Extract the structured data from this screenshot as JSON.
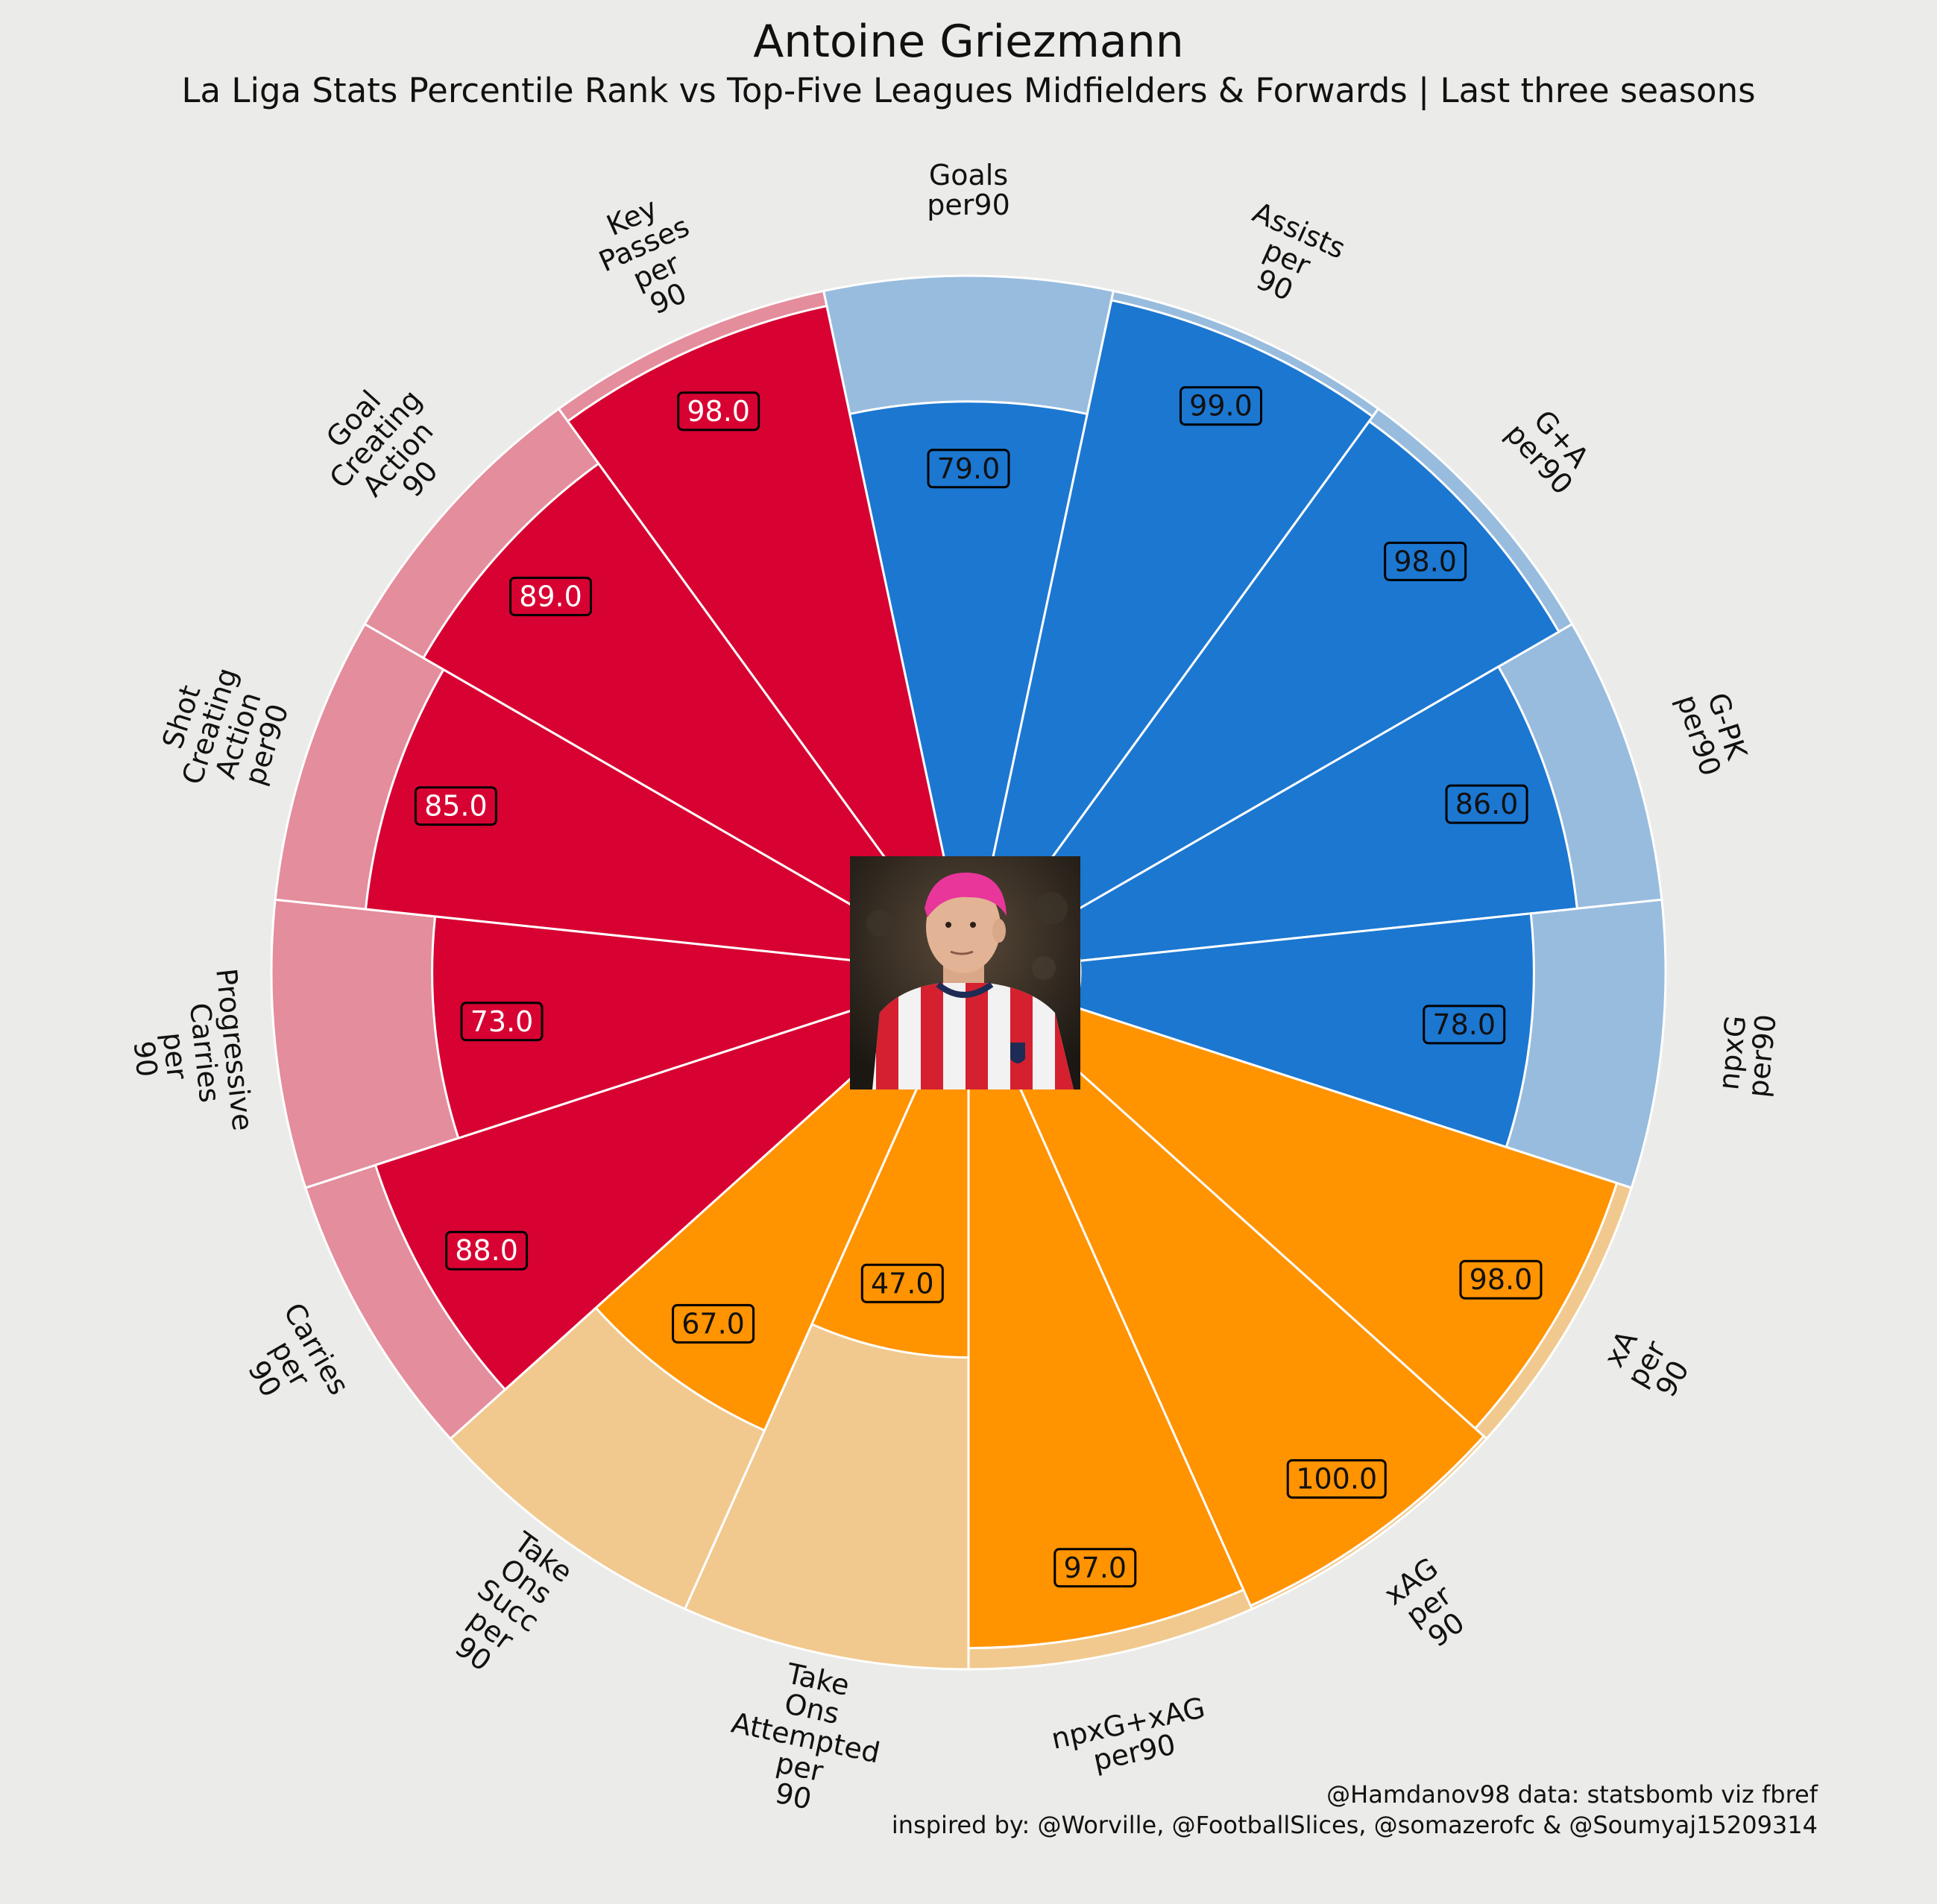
{
  "title": "Antoine Griezmann",
  "subtitle": "La Liga Stats Percentile Rank vs Top-Five Leagues Midfielders & Forwards | Last three seasons",
  "credits": {
    "line1": "@Hamdanov98 data: statsbomb viz fbref",
    "line2": "inspired by: @Worville, @FootballSlices, @somazerofc & @Soumyaj15209314"
  },
  "colors": {
    "background": "#ebebe9",
    "attacking": "#1c77d1",
    "attacking_light": "#98bcde",
    "possession": "#d70232",
    "possession_light": "#e48d9c",
    "creation": "#ff9300",
    "creation_light": "#f1c98e"
  },
  "chart_data": {
    "type": "pie",
    "subtype": "pizza-percentile",
    "range": [
      0,
      100
    ],
    "categories": [
      {
        "label": [
          "Goals",
          "per90"
        ],
        "value": 79.0,
        "group": "attacking"
      },
      {
        "label": [
          "Assists",
          "per",
          "90"
        ],
        "value": 99.0,
        "group": "attacking"
      },
      {
        "label": [
          "G+A",
          "per90"
        ],
        "value": 98.0,
        "group": "attacking"
      },
      {
        "label": [
          "G-PK",
          "per90"
        ],
        "value": 86.0,
        "group": "attacking"
      },
      {
        "label": [
          "npxG",
          "per90"
        ],
        "value": 78.0,
        "group": "attacking"
      },
      {
        "label": [
          "xA",
          "per",
          "90"
        ],
        "value": 98.0,
        "group": "creation"
      },
      {
        "label": [
          "xAG",
          "per",
          "90"
        ],
        "value": 100.0,
        "group": "creation"
      },
      {
        "label": [
          "npxG+xAG",
          "per90"
        ],
        "value": 97.0,
        "group": "creation"
      },
      {
        "label": [
          "Take",
          "Ons",
          "Attempted",
          "per",
          "90"
        ],
        "value": 47.0,
        "group": "creation"
      },
      {
        "label": [
          "Take",
          "Ons",
          "Succ",
          "per",
          "90"
        ],
        "value": 67.0,
        "group": "creation"
      },
      {
        "label": [
          "Carries",
          "per",
          "90"
        ],
        "value": 88.0,
        "group": "possession"
      },
      {
        "label": [
          "Progressive",
          "Carries",
          "per",
          "90"
        ],
        "value": 73.0,
        "group": "possession"
      },
      {
        "label": [
          "Shot",
          "Creating",
          "Action",
          "per90"
        ],
        "value": 85.0,
        "group": "possession"
      },
      {
        "label": [
          "Goal",
          "Creating",
          "Action",
          "90"
        ],
        "value": 89.0,
        "group": "possession"
      },
      {
        "label": [
          "Key",
          "Passes",
          "per",
          "90"
        ],
        "value": 98.0,
        "group": "possession"
      }
    ]
  }
}
